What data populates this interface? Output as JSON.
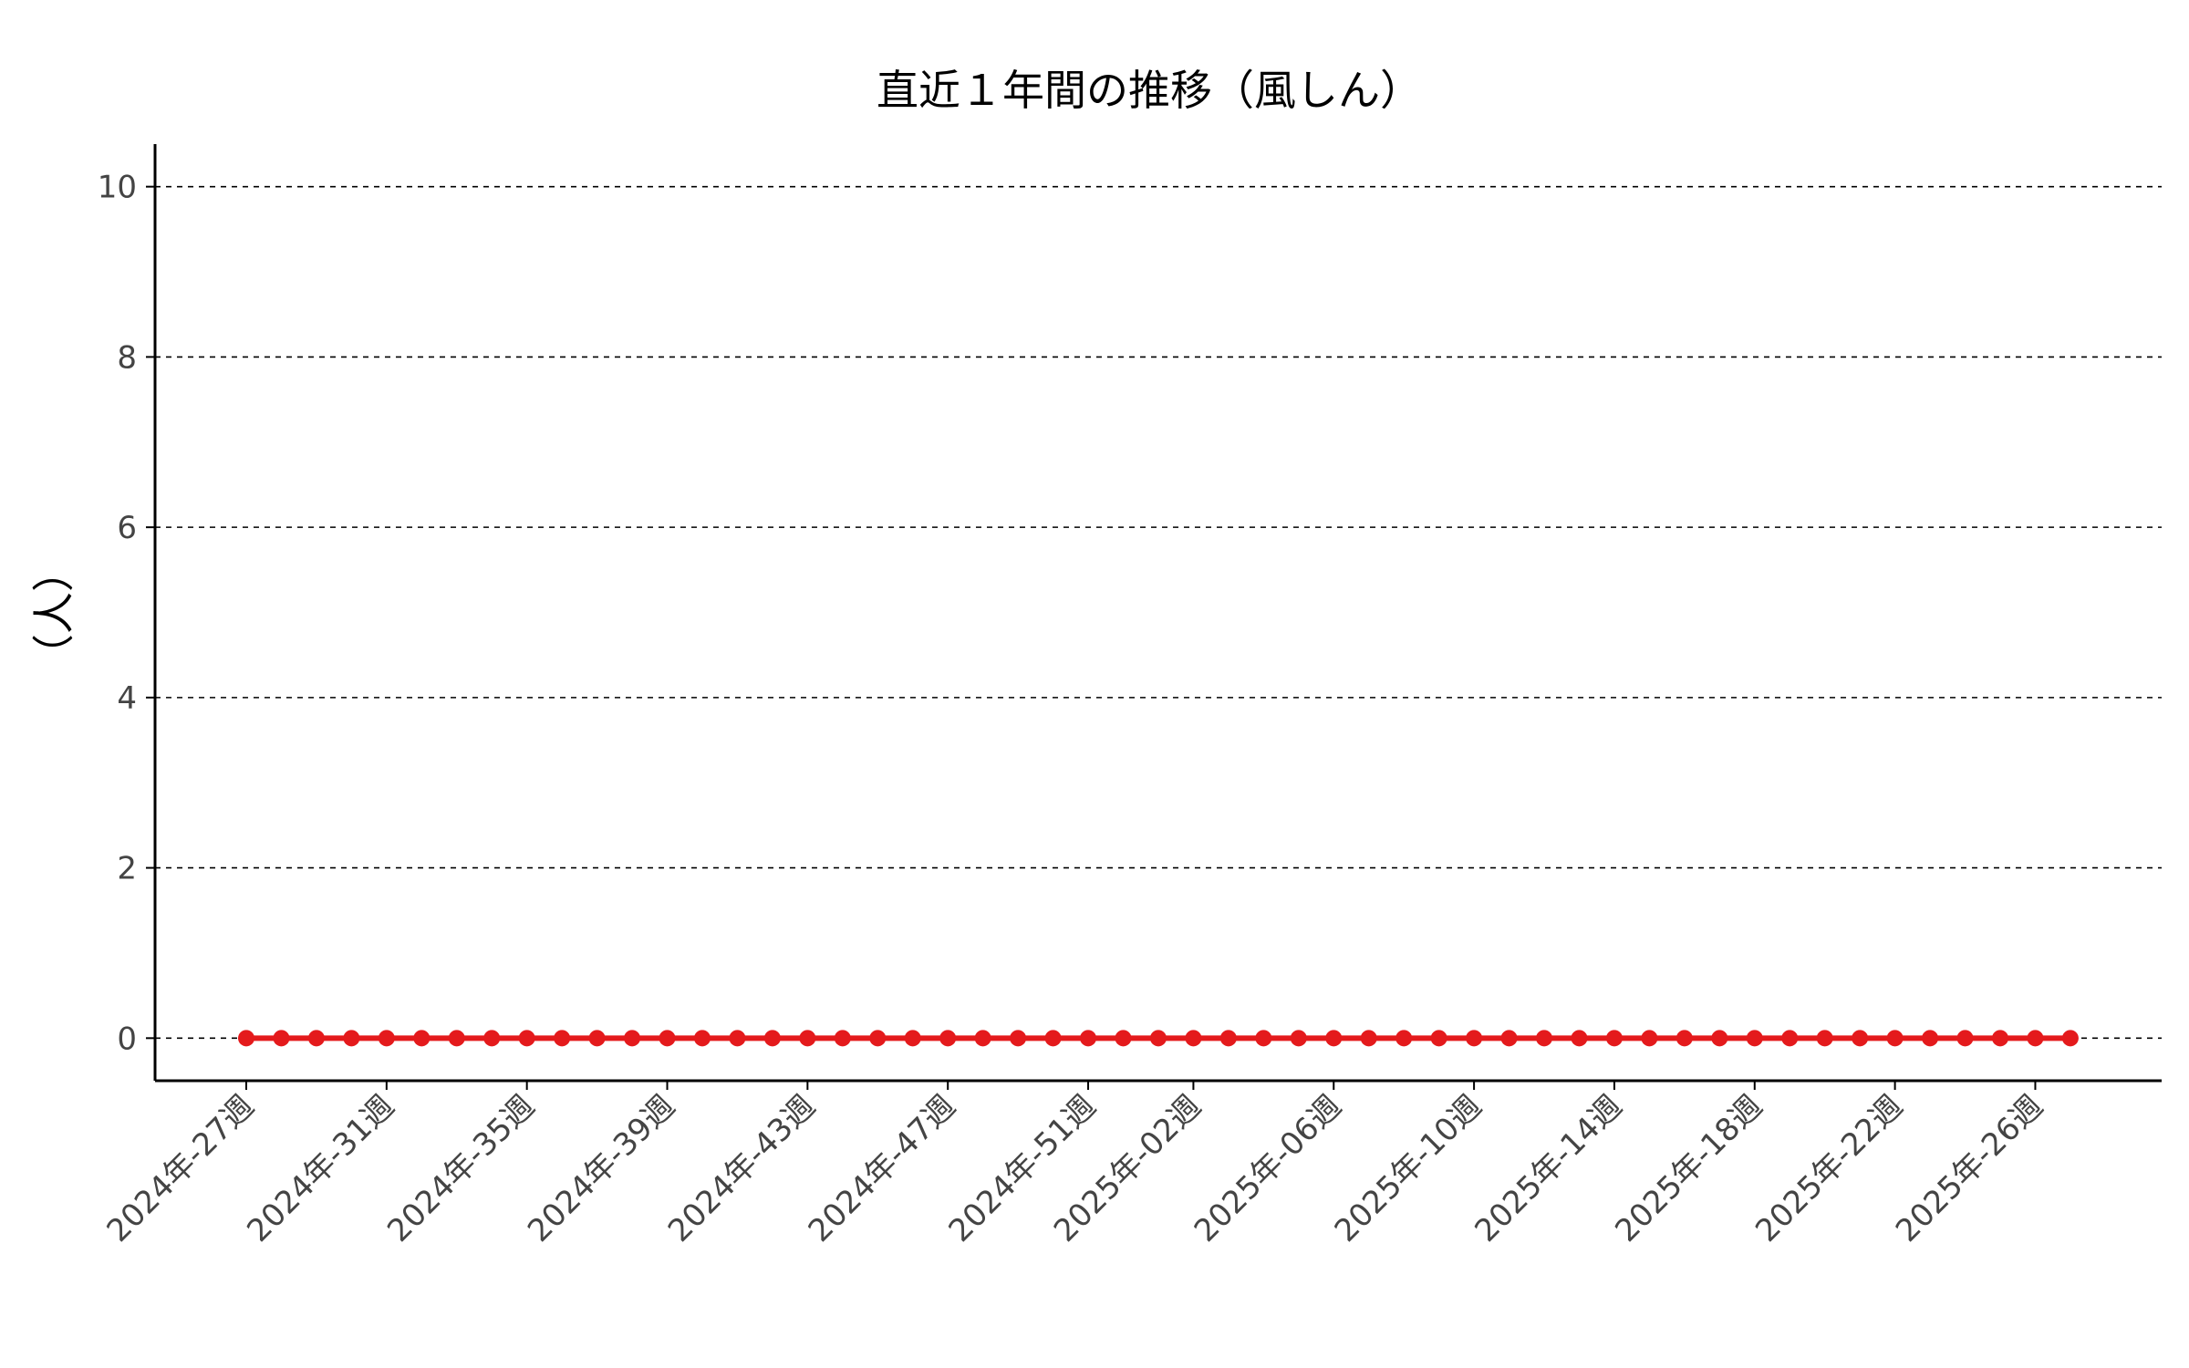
{
  "chart_data": {
    "type": "line",
    "title": "直近１年間の推移（風しん）",
    "ylabel": "（人）",
    "xlabel": "",
    "ylim": [
      -0.5,
      10.5
    ],
    "yticks": [
      0,
      2,
      4,
      6,
      8,
      10
    ],
    "grid": "horizontal-dashed",
    "line_color": "#e41a1c",
    "x_tick_labels": [
      "2024年-27週",
      "2024年-31週",
      "2024年-35週",
      "2024年-39週",
      "2024年-43週",
      "2024年-47週",
      "2024年-51週",
      "2025年-02週",
      "2025年-06週",
      "2025年-10週",
      "2025年-14週",
      "2025年-18週",
      "2025年-22週",
      "2025年-26週"
    ],
    "x": [
      "2024年-27週",
      "2024年-28週",
      "2024年-29週",
      "2024年-30週",
      "2024年-31週",
      "2024年-32週",
      "2024年-33週",
      "2024年-34週",
      "2024年-35週",
      "2024年-36週",
      "2024年-37週",
      "2024年-38週",
      "2024年-39週",
      "2024年-40週",
      "2024年-41週",
      "2024年-42週",
      "2024年-43週",
      "2024年-44週",
      "2024年-45週",
      "2024年-46週",
      "2024年-47週",
      "2024年-48週",
      "2024年-49週",
      "2024年-50週",
      "2024年-51週",
      "2024年-52週",
      "2025年-01週",
      "2025年-02週",
      "2025年-03週",
      "2025年-04週",
      "2025年-05週",
      "2025年-06週",
      "2025年-07週",
      "2025年-08週",
      "2025年-09週",
      "2025年-10週",
      "2025年-11週",
      "2025年-12週",
      "2025年-13週",
      "2025年-14週",
      "2025年-15週",
      "2025年-16週",
      "2025年-17週",
      "2025年-18週",
      "2025年-19週",
      "2025年-20週",
      "2025年-21週",
      "2025年-22週",
      "2025年-23週",
      "2025年-24週",
      "2025年-25週",
      "2025年-26週",
      "2025年-27週"
    ],
    "series": [
      {
        "values": [
          0,
          0,
          0,
          0,
          0,
          0,
          0,
          0,
          0,
          0,
          0,
          0,
          0,
          0,
          0,
          0,
          0,
          0,
          0,
          0,
          0,
          0,
          0,
          0,
          0,
          0,
          0,
          0,
          0,
          0,
          0,
          0,
          0,
          0,
          0,
          0,
          0,
          0,
          0,
          0,
          0,
          0,
          0,
          0,
          0,
          0,
          0,
          0,
          0,
          0,
          0,
          0,
          0
        ]
      }
    ]
  }
}
